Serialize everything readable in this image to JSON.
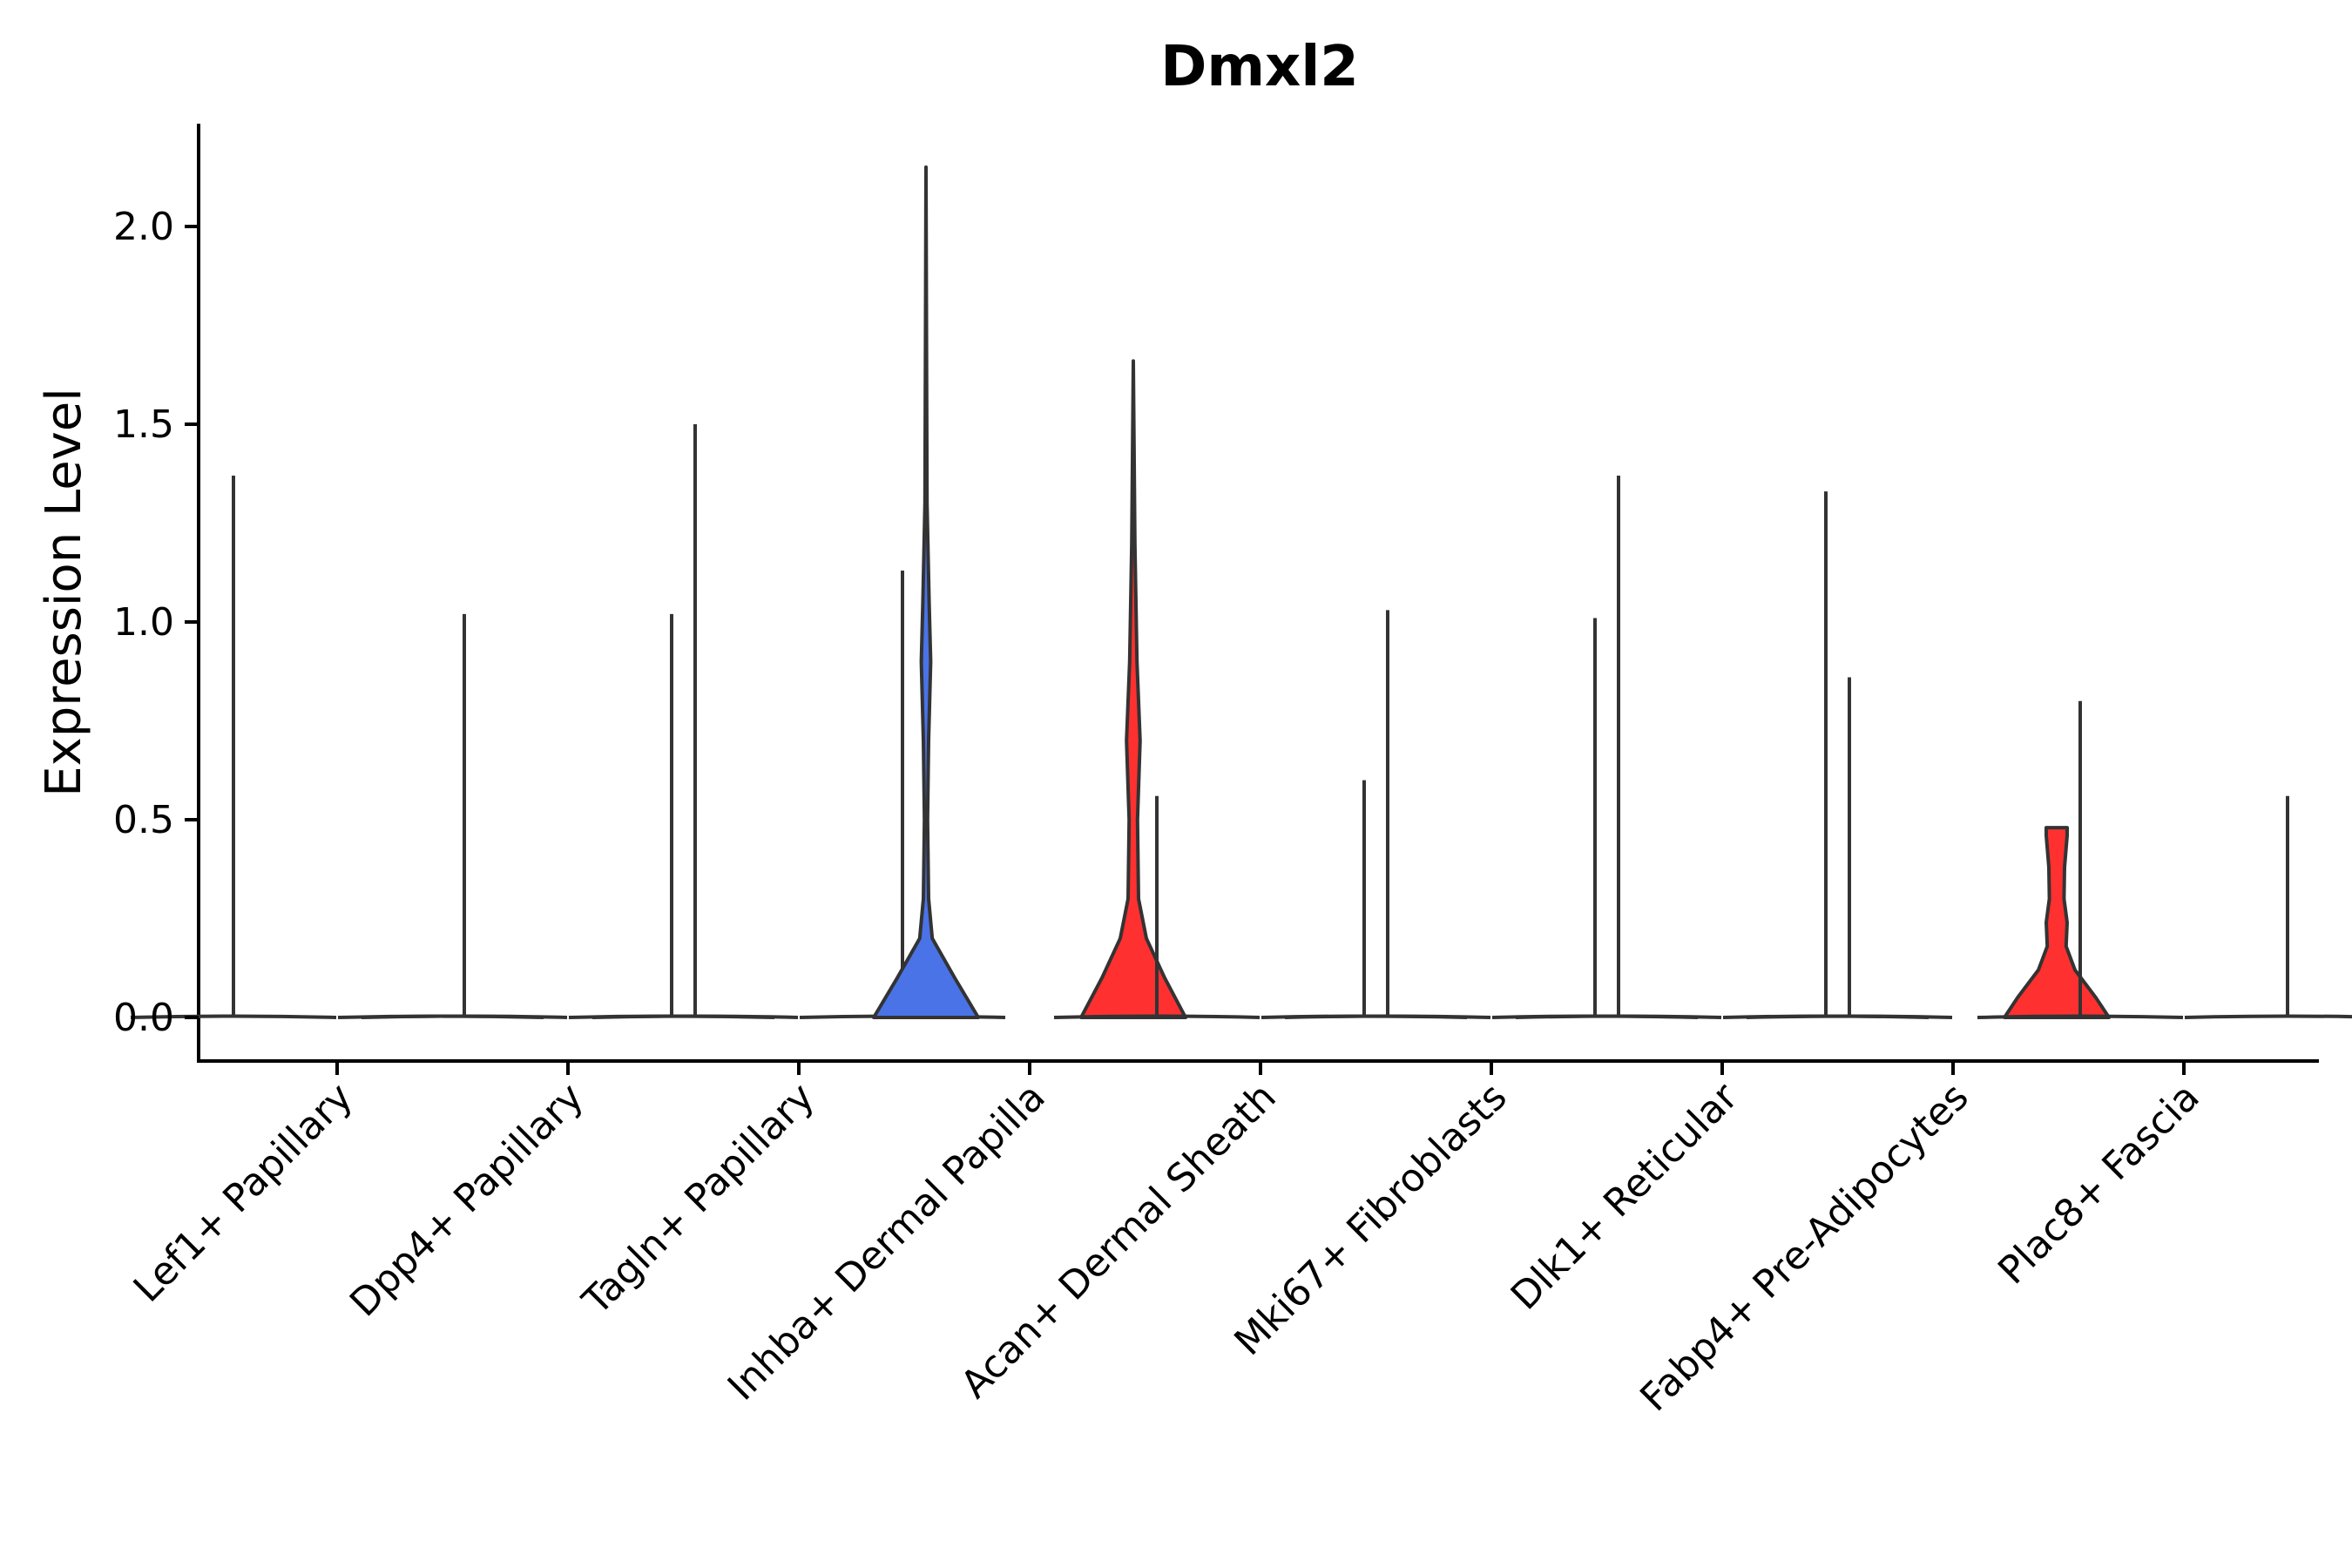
{
  "chart_data": {
    "type": "violin",
    "title": "Dmxl2",
    "xlabel": "",
    "ylabel": "Expression Level",
    "ylim": [
      -0.11,
      2.25
    ],
    "yticks": [
      0.0,
      0.5,
      1.0,
      1.5,
      2.0
    ],
    "ytick_labels": [
      "0.0",
      "0.5",
      "1.0",
      "1.5",
      "2.0"
    ],
    "categories": [
      "Lef1+ Papillary",
      "Dpp4+ Papillary",
      "Tagln+ Papillary",
      "Inhba+ Dermal Papilla",
      "Acan+ Dermal Sheath",
      "Mki67+ Fibroblasts",
      "Dlk1+ Reticular",
      "Fabp4+ Pre-Adipocytes",
      "Plac8+ Fascia"
    ],
    "split_groups": [
      {
        "name": "group 1",
        "color": "#4a73e8"
      },
      {
        "name": "group 2",
        "color": "#ff3030"
      }
    ],
    "series": [
      {
        "name": "group 1",
        "max_values": [
          1.37,
          1.02,
          1.5,
          2.15,
          0.56,
          1.03,
          1.37,
          0.86,
          0.8
        ]
      },
      {
        "name": "group 2",
        "max_values": [
          null,
          1.02,
          1.13,
          1.66,
          0.6,
          1.01,
          1.33,
          0.48,
          0.56
        ]
      }
    ],
    "filled_violins": [
      {
        "category": "Inhba+ Dermal Papilla",
        "group": "group 1",
        "profile": [
          [
            0.0,
            1.0
          ],
          [
            0.1,
            0.55
          ],
          [
            0.2,
            0.12
          ],
          [
            0.3,
            0.05
          ],
          [
            0.5,
            0.03
          ],
          [
            0.7,
            0.05
          ],
          [
            0.9,
            0.09
          ],
          [
            1.05,
            0.06
          ],
          [
            1.3,
            0.02
          ],
          [
            1.7,
            0.01
          ],
          [
            2.15,
            0.0
          ]
        ]
      },
      {
        "category": "Inhba+ Dermal Papilla",
        "group": "group 2",
        "profile": [
          [
            0.0,
            1.0
          ],
          [
            0.1,
            0.6
          ],
          [
            0.2,
            0.25
          ],
          [
            0.3,
            0.1
          ],
          [
            0.5,
            0.08
          ],
          [
            0.7,
            0.13
          ],
          [
            0.9,
            0.07
          ],
          [
            1.2,
            0.03
          ],
          [
            1.66,
            0.0
          ]
        ]
      },
      {
        "category": "Fabp4+ Pre-Adipocytes",
        "group": "group 2",
        "profile": [
          [
            0.0,
            1.0
          ],
          [
            0.05,
            0.75
          ],
          [
            0.12,
            0.35
          ],
          [
            0.18,
            0.18
          ],
          [
            0.24,
            0.2
          ],
          [
            0.3,
            0.14
          ],
          [
            0.38,
            0.15
          ],
          [
            0.46,
            0.2
          ],
          [
            0.48,
            0.2
          ]
        ]
      }
    ]
  }
}
